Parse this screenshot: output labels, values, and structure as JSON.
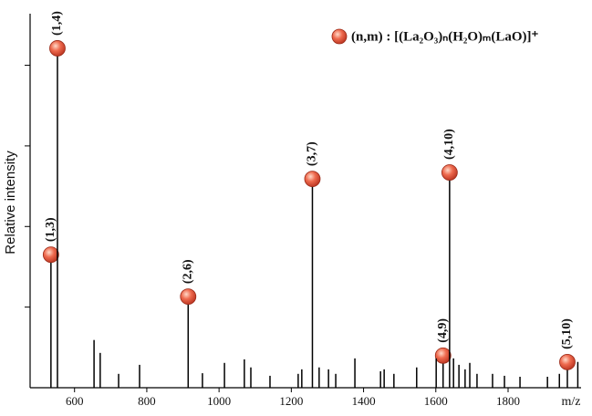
{
  "chart_data": {
    "type": "stem",
    "x_label": "m/z",
    "y_label": "Relative intensity",
    "xlim": [
      477,
      2002
    ],
    "xticks": [
      600,
      800,
      1000,
      1200,
      1400,
      1600,
      1800
    ],
    "ylim": [
      0,
      116
    ],
    "yticks": [
      25,
      50,
      75,
      100
    ],
    "series": [
      {
        "name": "(n,m) : [(La₂O₃)ₙ(H₂O)ₘ(LaO)]⁺",
        "color": "#e0533f",
        "x": [
          534.7,
          552.7,
          914.5,
          1258.4,
          1620.1,
          1638.1,
          1964.1
        ],
        "values": [
          39,
          103,
          26,
          62.5,
          7.7,
          64.5,
          5.7
        ],
        "labels": [
          "(1,3)",
          "(1,4)",
          "(2,6)",
          "(3,7)",
          "(4,9)",
          "(4,10)",
          "(5,10)"
        ]
      },
      {
        "color": "#000000",
        "x": [
          654,
          671,
          722,
          780,
          954,
          1015,
          1070,
          1088,
          1141,
          1219,
          1229,
          1277,
          1303,
          1323,
          1376,
          1447,
          1457,
          1484,
          1547,
          1601,
          1649,
          1664,
          1681,
          1694,
          1714,
          1757,
          1790,
          1833,
          1909,
          1942,
          1993
        ],
        "values": [
          14.8,
          10.8,
          4.3,
          7.1,
          4.5,
          7.7,
          8.8,
          6.3,
          3.7,
          4.3,
          5.7,
          6.3,
          5.7,
          4.3,
          9.1,
          5.1,
          5.7,
          4.3,
          6.3,
          9.1,
          9.1,
          7.1,
          5.7,
          7.7,
          4.3,
          4.3,
          3.7,
          3.4,
          3.4,
          4.3,
          8.0
        ]
      }
    ]
  }
}
